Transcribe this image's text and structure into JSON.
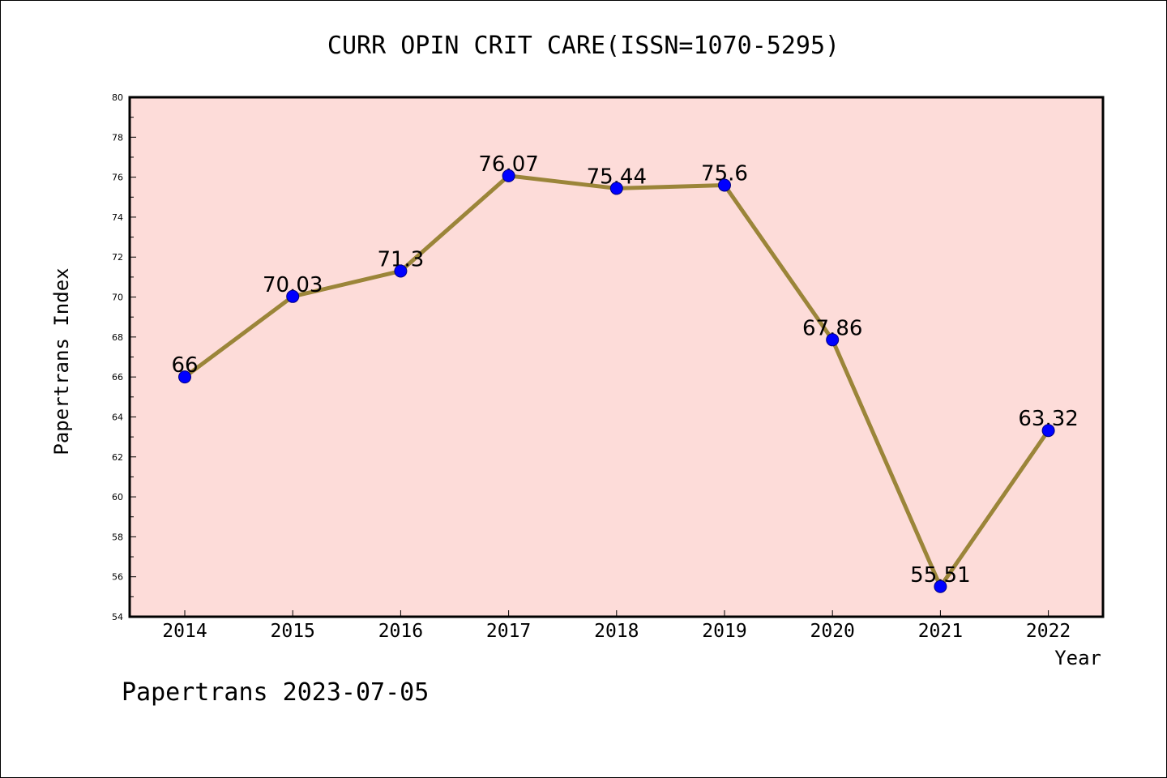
{
  "chart_data": {
    "type": "line",
    "title": "CURR OPIN CRIT CARE(ISSN=1070-5295)",
    "xlabel": "Year",
    "ylabel": "Papertrans Index",
    "categories": [
      "2014",
      "2015",
      "2016",
      "2017",
      "2018",
      "2019",
      "2020",
      "2021",
      "2022"
    ],
    "series": [
      {
        "values": [
          66,
          70.03,
          71.3,
          76.07,
          75.44,
          75.6,
          67.86,
          55.51,
          63.32
        ],
        "data_labels": [
          "66",
          "70.03",
          "71.3",
          "76.07",
          "75.44",
          "75.6",
          "67.86",
          "55.51",
          "63.32"
        ]
      }
    ],
    "ylim": [
      54,
      80
    ],
    "yticks": [
      54,
      56,
      58,
      60,
      62,
      64,
      66,
      68,
      70,
      72,
      74,
      76,
      78,
      80
    ],
    "grid": false,
    "legend": "none",
    "colors": {
      "plot_background": "#fddcd9",
      "line": "#9b8539",
      "marker": "#0000ff"
    }
  },
  "footer": "Papertrans 2023-07-05"
}
